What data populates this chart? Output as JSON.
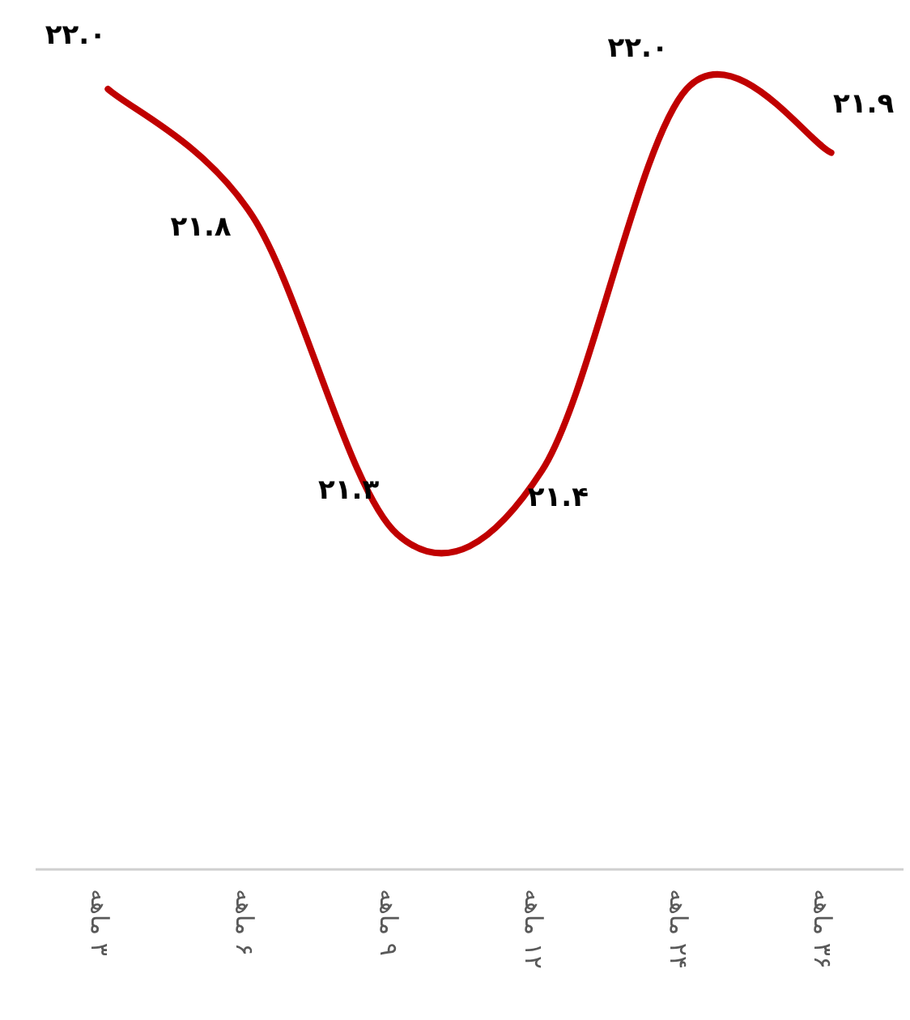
{
  "chart_data": {
    "type": "line",
    "categories": [
      "۳ ماهه",
      "۶ ماهه",
      "۹ ماهه",
      "۱۲ ماهه",
      "۲۴ ماهه",
      "۳۶ ماهه"
    ],
    "series": [
      {
        "color": "#c00000",
        "values": [
          22.0,
          21.8,
          21.3,
          21.4,
          22.0,
          21.9
        ],
        "value_labels": [
          "۲۲.۰",
          "۲۱.۸",
          "۲۱.۳",
          "۲۱.۴",
          "۲۲.۰",
          "۲۱.۹"
        ]
      }
    ],
    "marker": "none",
    "line_style": "solid"
  }
}
